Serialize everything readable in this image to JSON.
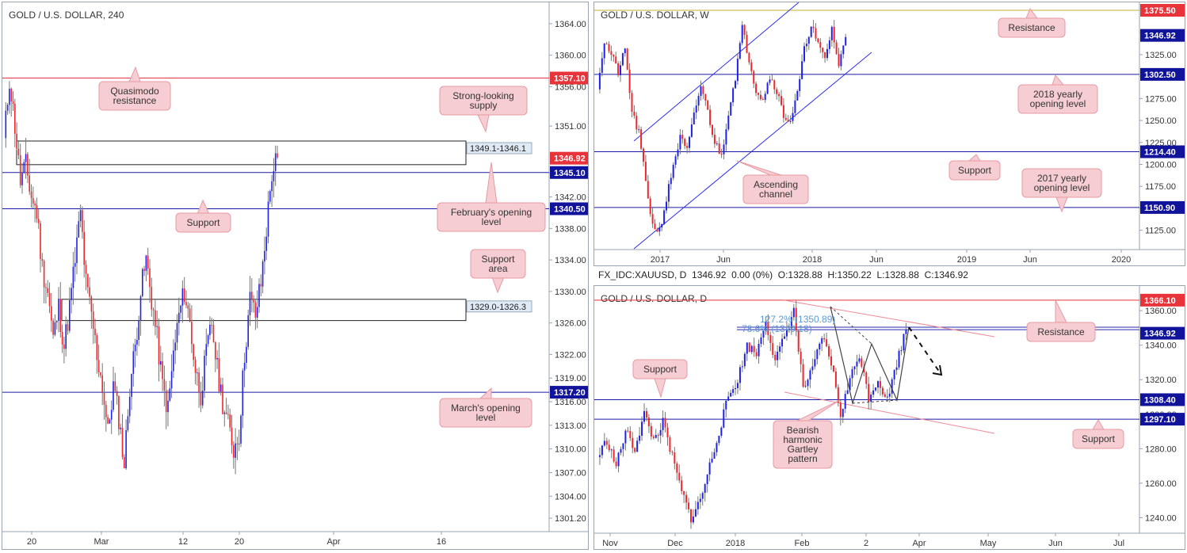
{
  "colors": {
    "bull": "#1f22e8",
    "bear": "#f0262a",
    "support_line": "#1a1aa8",
    "resistance_line": "#e8333a",
    "price_badge": "#e8333a",
    "axis_badge_blue": "#11149a",
    "callout_fill": "#f6cdd2",
    "callout_border": "#e89aa3",
    "channel": "#2c2cf2",
    "pink_line": "#ef8a95",
    "fib_text": "#5b9bd5"
  },
  "panel_h4": {
    "title": "GOLD / U.S. DOLLAR, 240",
    "y_ticks": [
      "1364.00",
      "1360.00",
      "1356.00",
      "1351.00",
      "1345.00",
      "1342.00",
      "1338.00",
      "1334.00",
      "1330.00",
      "1326.00",
      "1322.00",
      "1319.00",
      "1316.00",
      "1313.00",
      "1310.00",
      "1307.00",
      "1304.00",
      "1301.20"
    ],
    "x_ticks": [
      "20",
      "Mar",
      "12",
      "20",
      "Apr",
      "16"
    ],
    "badges": [
      {
        "label": "1357.10",
        "type": "red",
        "price": 1357.1
      },
      {
        "label": "1346.92",
        "type": "red",
        "price": 1346.92
      },
      {
        "label": "1345.10",
        "type": "blue",
        "price": 1345.1
      },
      {
        "label": "1340.50",
        "type": "blue",
        "price": 1340.5
      },
      {
        "label": "1317.20",
        "type": "blue",
        "price": 1317.2
      }
    ],
    "zone_labels": [
      "1349.1-1346.1",
      "1329.0-1326.3"
    ],
    "callouts": [
      "Quasimodo\nresistance",
      "Strong-looking\nsupply",
      "Support",
      "February's opening\nlevel",
      "Support\narea",
      "March's opening\nlevel"
    ]
  },
  "panel_w": {
    "title": "GOLD / U.S. DOLLAR, W",
    "y_ticks": [
      "1350.00",
      "1325.00",
      "1300.00",
      "1275.00",
      "1250.00",
      "1225.00",
      "1200.00",
      "1175.00",
      "1150.00",
      "1125.00"
    ],
    "x_ticks": [
      "2017",
      "Jun",
      "2018",
      "Jun",
      "2019",
      "Jun",
      "2020"
    ],
    "badges": [
      {
        "label": "1375.50",
        "type": "red"
      },
      {
        "label": "1346.92",
        "type": "blue"
      },
      {
        "label": "1302.50",
        "type": "blue"
      },
      {
        "label": "1214.40",
        "type": "blue"
      },
      {
        "label": "1150.90",
        "type": "blue"
      }
    ],
    "callouts": [
      "Resistance",
      "2018 yearly\nopening level",
      "Support",
      "2017 yearly\nopening level",
      "Ascending\nchannel"
    ]
  },
  "panel_d": {
    "header": "FX_IDC:XAUUSD, D  1346.92  0.00 (0%)  O:1328.88  H:1350.22  L:1328.88  C:1346.92",
    "title": "GOLD / U.S. DOLLAR, D",
    "y_ticks": [
      "1360.00",
      "1340.00",
      "1320.00",
      "1300.00",
      "1280.00",
      "1260.00",
      "1240.00"
    ],
    "x_ticks": [
      "Nov",
      "Dec",
      "2018",
      "Feb",
      "2",
      "Apr",
      "May",
      "Jun",
      "Jul"
    ],
    "badges": [
      {
        "label": "1366.10",
        "type": "red"
      },
      {
        "label": "1346.92",
        "type": "blue"
      },
      {
        "label": "1308.40",
        "type": "blue"
      },
      {
        "label": "1297.10",
        "type": "blue"
      }
    ],
    "fib_labels": [
      "127.2% (1350.89)",
      "78.6% (1349.18)"
    ],
    "callouts": [
      "Resistance",
      "Support",
      "Support",
      "Bearish\nharmonic\nGartley\npattern"
    ]
  },
  "chart_data": [
    {
      "type": "candlestick",
      "title": "GOLD / U.S. DOLLAR, 240",
      "ylim": [
        1299.5,
        1365.5
      ],
      "close_series": [
        1349,
        1357,
        1351,
        1344,
        1346,
        1342,
        1340,
        1333,
        1330,
        1324,
        1328,
        1323,
        1328,
        1334,
        1340,
        1331,
        1327,
        1322,
        1318,
        1312,
        1318,
        1314,
        1308,
        1318,
        1323,
        1330,
        1334,
        1329,
        1324,
        1318,
        1315,
        1322,
        1327,
        1330,
        1326,
        1320,
        1317,
        1322,
        1326,
        1320,
        1316,
        1313,
        1310,
        1312,
        1322,
        1329,
        1327,
        1331,
        1338,
        1345,
        1347
      ],
      "horizontal_levels": [
        1357.1,
        1345.1,
        1340.5,
        1317.2
      ],
      "zones": [
        [
          1346.1,
          1349.1
        ],
        [
          1326.3,
          1329.0
        ]
      ]
    },
    {
      "type": "candlestick",
      "title": "GOLD / U.S. DOLLAR, W",
      "ylim": [
        1103,
        1380
      ],
      "horizontal_levels": [
        1375.5,
        1302.5,
        1214.4,
        1150.9
      ]
    },
    {
      "type": "candlestick",
      "title": "GOLD / U.S. DOLLAR, D",
      "ylim": [
        1231,
        1372
      ],
      "horizontal_levels": [
        1366.1,
        1308.4,
        1297.1
      ]
    }
  ]
}
